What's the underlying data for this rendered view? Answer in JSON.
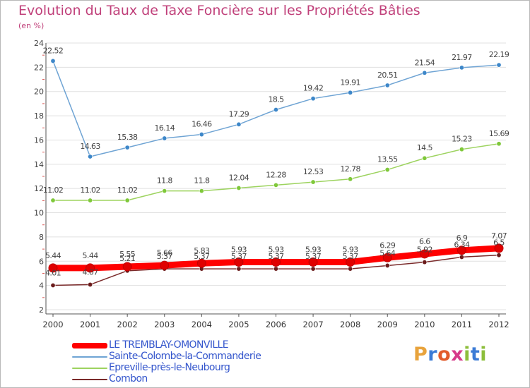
{
  "title": "Evolution du Taux de Taxe Foncière sur les Propriétés Bâties",
  "subtitle": "(en %)",
  "logo": {
    "text": "Proxiti",
    "letters": [
      "P",
      "r",
      "o",
      "x",
      "i",
      "t",
      "i"
    ],
    "colors": [
      "#e8a33c",
      "#3b7bd6",
      "#e25c2c",
      "#d63a8a",
      "#8cbe3a",
      "#3b7bd6",
      "#8cbe3a"
    ]
  },
  "colors": {
    "title": "#c0407a",
    "legend_text": "#3355cc",
    "axis": "#555555",
    "grid": "#e0e0e0",
    "background": "#ffffff"
  },
  "chart_data": {
    "type": "line",
    "x": [
      "2000",
      "2001",
      "2002",
      "2003",
      "2004",
      "2005",
      "2006",
      "2007",
      "2008",
      "2009",
      "2010",
      "2011",
      "2012"
    ],
    "ylim": [
      2,
      24
    ],
    "yticks": [
      "2",
      "4",
      "6",
      "8",
      "10",
      "12",
      "14",
      "16",
      "18",
      "20",
      "22",
      "24"
    ],
    "title": "Evolution du Taux de Taxe Foncière sur les Propriétés Bâties",
    "ylabel": "(en %)",
    "grid": true,
    "legend_position": "bottom-left",
    "series": [
      {
        "name": "Sainte-Colombe-la-Commanderie",
        "color": "#6fa4d4",
        "marker": "#3d87c9",
        "values": [
          22.52,
          14.63,
          15.38,
          16.14,
          16.46,
          17.29,
          18.5,
          19.42,
          19.91,
          20.51,
          21.54,
          21.97,
          22.19
        ],
        "labels": [
          "22.52",
          "14.63",
          "15.38",
          "16.14",
          "16.46",
          "17.29",
          "18.5",
          "19.42",
          "19.91",
          "20.51",
          "21.54",
          "21.97",
          "22.19"
        ]
      },
      {
        "name": "Epreville-près-le-Neubourg",
        "color": "#9dd35f",
        "marker": "#7fc83a",
        "values": [
          11.02,
          11.02,
          11.02,
          11.8,
          11.8,
          12.04,
          12.28,
          12.53,
          12.78,
          13.55,
          14.5,
          15.23,
          15.69
        ],
        "labels": [
          "11.02",
          "11.02",
          "11.02",
          "11.8",
          "11.8",
          "12.04",
          "12.28",
          "12.53",
          "12.78",
          "13.55",
          "14.5",
          "15.23",
          "15.69"
        ]
      },
      {
        "name": "Combon",
        "color": "#7a2a2a",
        "marker": "#6b1c1c",
        "values": [
          4.01,
          4.07,
          5.21,
          5.37,
          5.37,
          5.37,
          5.37,
          5.37,
          5.37,
          5.64,
          5.92,
          6.34,
          6.5
        ],
        "labels": [
          "4.01",
          "4.07",
          "5.21",
          "5.37",
          "5.37",
          "5.37",
          "5.37",
          "5.37",
          "5.37",
          "5.64",
          "5.92",
          "6.34",
          "6.5"
        ]
      },
      {
        "name": "LE TREMBLAY-OMONVILLE",
        "color": "#ff0000",
        "marker": "#e00000",
        "values": [
          5.44,
          5.44,
          5.55,
          5.66,
          5.83,
          5.93,
          5.93,
          5.93,
          5.93,
          6.29,
          6.6,
          6.9,
          7.07
        ],
        "labels": [
          "5.44",
          "5.44",
          "5.55",
          "5.66",
          "5.83",
          "5.93",
          "5.93",
          "5.93",
          "5.93",
          "6.29",
          "6.6",
          "6.9",
          "7.07"
        ]
      }
    ],
    "legend": [
      {
        "name": "LE TREMBLAY-OMONVILLE",
        "color": "#ff0000",
        "thickness": 8
      },
      {
        "name": "Sainte-Colombe-la-Commanderie",
        "color": "#6fa4d4",
        "thickness": 2
      },
      {
        "name": "Epreville-près-le-Neubourg",
        "color": "#9dd35f",
        "thickness": 2
      },
      {
        "name": "Combon",
        "color": "#7a2a2a",
        "thickness": 2
      }
    ]
  }
}
